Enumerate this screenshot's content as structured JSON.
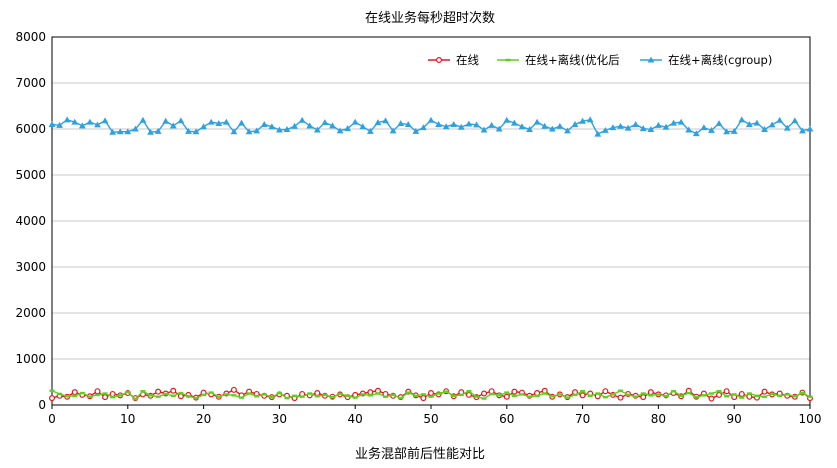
{
  "chart_data": {
    "type": "line",
    "title": "在线业务每秒超时次数",
    "xlabel": "业务混部前后性能对比",
    "ylabel": "",
    "xlim": [
      0,
      100
    ],
    "ylim": [
      0,
      8000
    ],
    "x_ticks": [
      "0",
      "10",
      "20",
      "30",
      "40",
      "50",
      "60",
      "70",
      "80",
      "90",
      "100"
    ],
    "y_ticks": [
      "0",
      "1000",
      "2000",
      "3000",
      "4000",
      "5000",
      "6000",
      "7000",
      "8000"
    ],
    "grid": "horizontal",
    "legend_position": "top-right",
    "x": [
      0,
      1,
      2,
      3,
      4,
      5,
      6,
      7,
      8,
      9,
      10,
      11,
      12,
      13,
      14,
      15,
      16,
      17,
      18,
      19,
      20,
      21,
      22,
      23,
      24,
      25,
      26,
      27,
      28,
      29,
      30,
      31,
      32,
      33,
      34,
      35,
      36,
      37,
      38,
      39,
      40,
      41,
      42,
      43,
      44,
      45,
      46,
      47,
      48,
      49,
      50,
      51,
      52,
      53,
      54,
      55,
      56,
      57,
      58,
      59,
      60,
      61,
      62,
      63,
      64,
      65,
      66,
      67,
      68,
      69,
      70,
      71,
      72,
      73,
      74,
      75,
      76,
      77,
      78,
      79,
      80,
      81,
      82,
      83,
      84,
      85,
      86,
      87,
      88,
      89,
      90,
      91,
      92,
      93,
      94,
      95,
      96,
      97,
      98,
      99,
      100
    ],
    "series": [
      {
        "name": "在线",
        "color": "#e8161b",
        "marker": "circle",
        "values": [
          150,
          200,
          180,
          280,
          220,
          190,
          300,
          170,
          240,
          210,
          260,
          150,
          230,
          200,
          290,
          250,
          310,
          190,
          220,
          160,
          270,
          230,
          180,
          250,
          330,
          210,
          290,
          240,
          200,
          170,
          230,
          200,
          150,
          240,
          210,
          260,
          200,
          180,
          230,
          170,
          220,
          250,
          280,
          310,
          240,
          200,
          170,
          290,
          210,
          150,
          260,
          230,
          300,
          190,
          280,
          220,
          170,
          250,
          300,
          210,
          180,
          290,
          270,
          200,
          260,
          310,
          180,
          230,
          170,
          280,
          210,
          250,
          190,
          300,
          220,
          160,
          240,
          200,
          170,
          280,
          230,
          210,
          260,
          190,
          310,
          180,
          250,
          140,
          220,
          300,
          170,
          240,
          180,
          160,
          290,
          230,
          250,
          200,
          180,
          270,
          150
        ]
      },
      {
        "name": "在线+离线(优化后",
        "color": "#5ed11f",
        "marker": "dash",
        "values": [
          310,
          240,
          190,
          200,
          260,
          180,
          220,
          250,
          170,
          210,
          280,
          130,
          300,
          210,
          180,
          240,
          200,
          260,
          190,
          150,
          220,
          270,
          180,
          230,
          210,
          160,
          250,
          190,
          230,
          170,
          260,
          150,
          200,
          180,
          250,
          190,
          220,
          170,
          240,
          200,
          160,
          230,
          210,
          250,
          180,
          220,
          150,
          270,
          200,
          230,
          180,
          250,
          290,
          200,
          220,
          300,
          180,
          140,
          240,
          210,
          270,
          200,
          230,
          180,
          200,
          250,
          190,
          230,
          160,
          220,
          300,
          200,
          250,
          170,
          230,
          310,
          220,
          180,
          250,
          210,
          230,
          190,
          300,
          200,
          260,
          170,
          210,
          250,
          300,
          190,
          230,
          160,
          250,
          200,
          180,
          240,
          200,
          230,
          190,
          260,
          180
        ]
      },
      {
        "name": "在线+离线(cgroup)",
        "color": "#2ea1e0",
        "marker": "triangle",
        "values": [
          6100,
          6080,
          6200,
          6150,
          6070,
          6150,
          6090,
          6180,
          5930,
          5940,
          5940,
          6000,
          6190,
          5930,
          5950,
          6170,
          6070,
          6180,
          5950,
          5940,
          6050,
          6150,
          6120,
          6150,
          5940,
          6130,
          5940,
          5960,
          6100,
          6050,
          5980,
          5990,
          6060,
          6190,
          6070,
          5980,
          6140,
          6070,
          5960,
          6010,
          6150,
          6050,
          5950,
          6140,
          6180,
          5960,
          6120,
          6100,
          5950,
          6030,
          6190,
          6100,
          6050,
          6100,
          6040,
          6110,
          6090,
          5980,
          6080,
          6000,
          6190,
          6130,
          6050,
          5990,
          6150,
          6060,
          6000,
          6060,
          5960,
          6100,
          6170,
          6200,
          5890,
          5970,
          6030,
          6060,
          6020,
          6100,
          6010,
          5990,
          6080,
          6040,
          6130,
          6150,
          5980,
          5900,
          6030,
          5970,
          6120,
          5940,
          5950,
          6200,
          6100,
          6130,
          5990,
          6090,
          6190,
          6020,
          6180,
          5960,
          6000
        ]
      }
    ]
  }
}
